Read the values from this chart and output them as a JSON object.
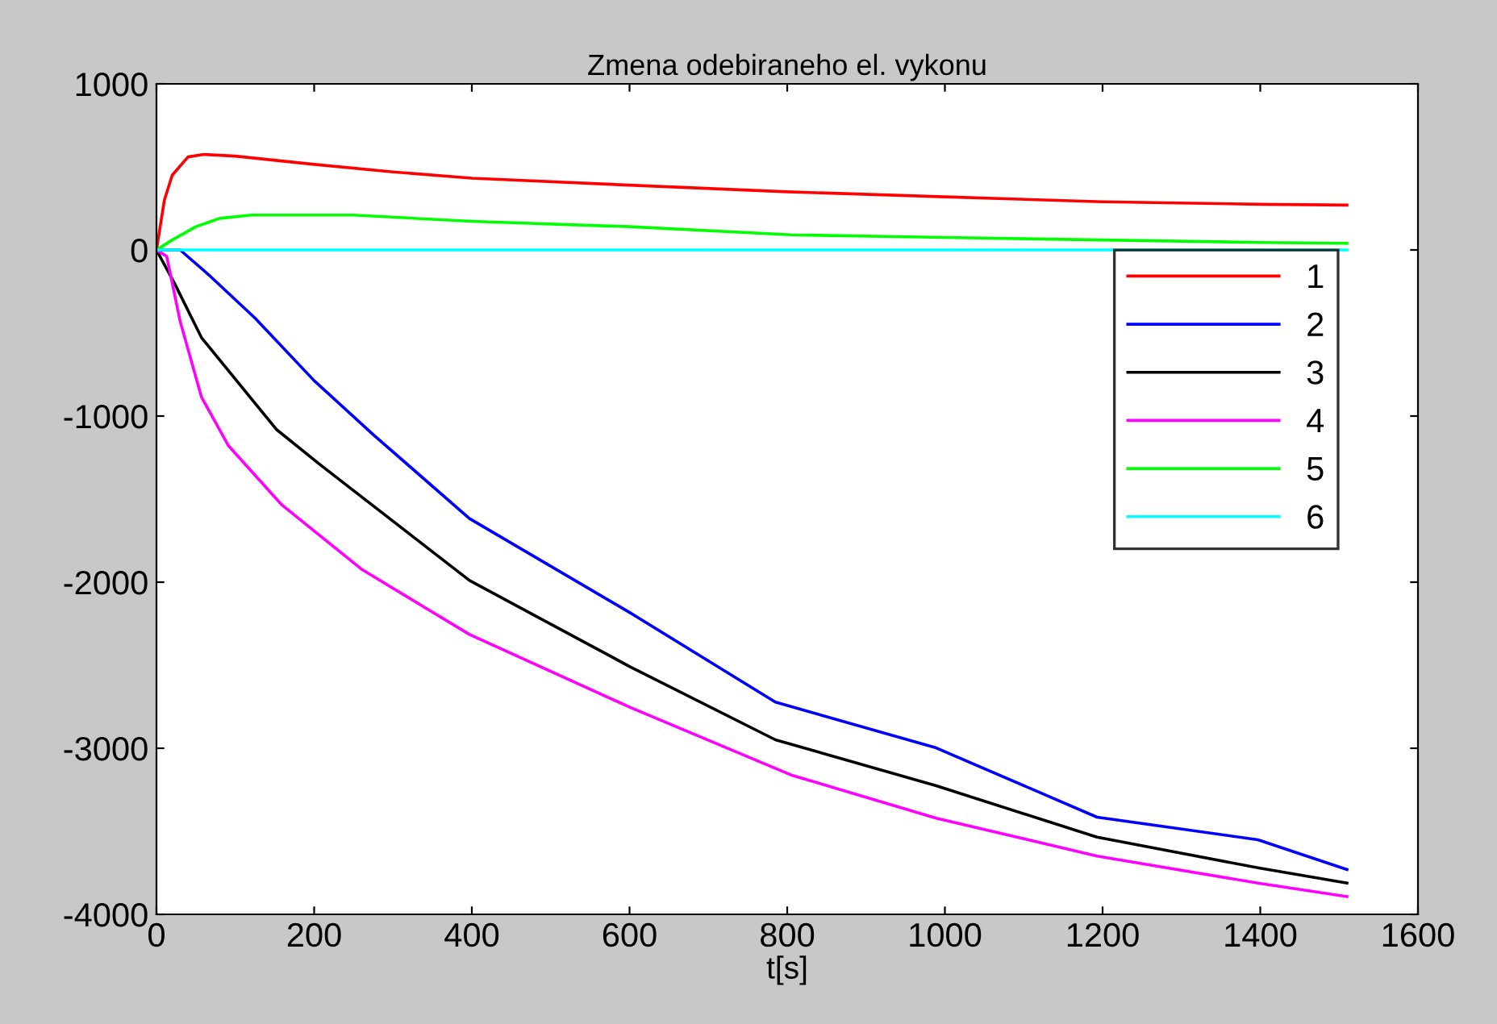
{
  "chart_data": {
    "type": "line",
    "title": "Zmena odebiraneho el. vykonu",
    "xlabel": "t[s]",
    "xlim": [
      0,
      1600
    ],
    "xticks": [
      0,
      200,
      400,
      600,
      800,
      1000,
      1200,
      1400,
      1600
    ],
    "ylim": [
      -4000,
      1000
    ],
    "yticks": [
      -4000,
      -3000,
      -2000,
      -1000,
      0,
      1000
    ],
    "grid": false,
    "legend": "right",
    "line_style": "solid",
    "marker": "none",
    "series": [
      {
        "name": "1",
        "color": "#ff0000",
        "x": [
          0,
          10,
          20,
          40,
          60,
          100,
          200,
          300,
          400,
          600,
          800,
          1000,
          1200,
          1400,
          1510
        ],
        "values": [
          0,
          300,
          450,
          560,
          575,
          565,
          515,
          470,
          432,
          390,
          350,
          320,
          290,
          275,
          270
        ]
      },
      {
        "name": "2",
        "color": "#0000ff",
        "x": [
          0,
          30,
          67,
          125,
          200,
          275,
          397,
          601,
          785,
          989,
          1193,
          1397,
          1510
        ],
        "values": [
          0,
          0,
          -153,
          -410,
          -787,
          -1112,
          -1617,
          -2185,
          -2722,
          -2998,
          -3415,
          -3551,
          -3730
        ]
      },
      {
        "name": "3",
        "color": "#000000",
        "x": [
          0,
          23,
          57,
          152,
          207,
          397,
          601,
          785,
          989,
          1193,
          1397,
          1510
        ],
        "values": [
          0,
          -202,
          -527,
          -1080,
          -1291,
          -1990,
          -2510,
          -2949,
          -3226,
          -3535,
          -3720,
          -3812
        ]
      },
      {
        "name": "4",
        "color": "#ff00ff",
        "x": [
          0,
          13,
          30,
          57,
          91,
          159,
          261,
          397,
          601,
          805,
          989,
          1193,
          1397,
          1510
        ],
        "values": [
          0,
          -39,
          -429,
          -885,
          -1177,
          -1535,
          -1925,
          -2315,
          -2754,
          -3161,
          -3421,
          -3649,
          -3812,
          -3893
        ]
      },
      {
        "name": "5",
        "color": "#00ff00",
        "x": [
          0,
          20,
          50,
          80,
          120,
          250,
          400,
          600,
          805,
          1000,
          1200,
          1400,
          1510
        ],
        "values": [
          0,
          60,
          140,
          190,
          210,
          210,
          172,
          140,
          91,
          75,
          60,
          45,
          40
        ]
      },
      {
        "name": "6",
        "color": "#00ffff",
        "x": [
          0,
          1510
        ],
        "values": [
          0,
          0
        ]
      }
    ]
  }
}
